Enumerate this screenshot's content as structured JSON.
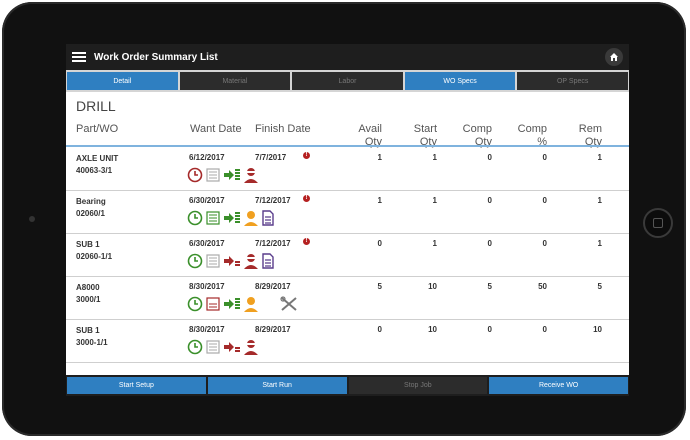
{
  "app": {
    "title": "Work Order Summary List"
  },
  "tabs": [
    {
      "label": "Detail",
      "active": true
    },
    {
      "label": "Material",
      "active": false
    },
    {
      "label": "Labor",
      "active": false
    },
    {
      "label": "WO Specs",
      "active": true
    },
    {
      "label": "OP Specs",
      "active": false
    }
  ],
  "section_title": "DRILL",
  "headers": {
    "part_wo": "Part/WO",
    "want_date": "Want Date",
    "finish_date": "Finish Date",
    "avail_qty": [
      "Avail",
      "Qty"
    ],
    "start_qty": [
      "Start",
      "Qty"
    ],
    "comp_qty": [
      "Comp",
      "Qty"
    ],
    "comp_pct": [
      "Comp",
      "%"
    ],
    "rem_qty": [
      "Rem",
      "Qty"
    ]
  },
  "rows": [
    {
      "part": "AXLE UNIT",
      "wo": "40063-3/1",
      "want": "6/12/2017",
      "finish": "7/7/2017",
      "alert": true,
      "avail": "1",
      "start": "1",
      "comp": "0",
      "pct": "0",
      "rem": "1"
    },
    {
      "part": "Bearing",
      "wo": "02060/1",
      "want": "6/30/2017",
      "finish": "7/12/2017",
      "alert": true,
      "avail": "1",
      "start": "1",
      "comp": "0",
      "pct": "0",
      "rem": "1"
    },
    {
      "part": "SUB 1",
      "wo": "02060-1/1",
      "want": "6/30/2017",
      "finish": "7/12/2017",
      "alert": true,
      "avail": "0",
      "start": "1",
      "comp": "0",
      "pct": "0",
      "rem": "1"
    },
    {
      "part": "A8000",
      "wo": "3000/1",
      "want": "8/30/2017",
      "finish": "8/29/2017",
      "alert": false,
      "avail": "5",
      "start": "10",
      "comp": "5",
      "pct": "50",
      "rem": "5"
    },
    {
      "part": "SUB 1",
      "wo": "3000-1/1",
      "want": "8/30/2017",
      "finish": "8/29/2017",
      "alert": false,
      "avail": "0",
      "start": "10",
      "comp": "0",
      "pct": "0",
      "rem": "10"
    }
  ],
  "alert_glyph": "!",
  "bottom_buttons": [
    {
      "label": "Start Setup",
      "active": true
    },
    {
      "label": "Start Run",
      "active": true
    },
    {
      "label": "Stop Job",
      "active": false
    },
    {
      "label": "Receive WO",
      "active": true
    }
  ],
  "colors": {
    "accent": "#2f7fc1",
    "bar": "#1e1e1e",
    "alert": "#b52020",
    "ok_green": "#3a8f2a",
    "bad_red": "#a52a2a",
    "orange": "#f0a020",
    "purple": "#5a3d8c"
  }
}
